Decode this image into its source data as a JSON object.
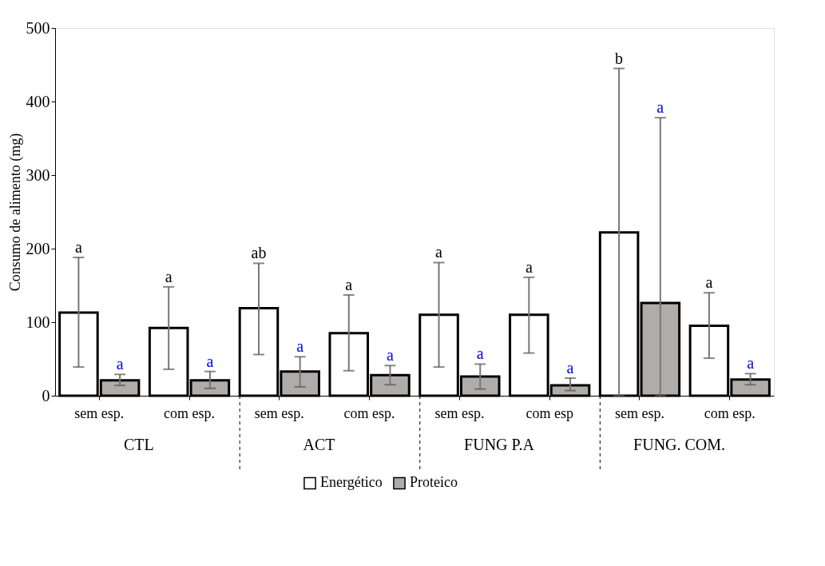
{
  "chart_data": {
    "type": "bar",
    "ylabel": "Consumo  de alimento  (mg)",
    "categories": [
      "sem esp.",
      "com esp.",
      "sem esp.",
      "com esp.",
      "sem esp.",
      "com esp",
      "sem esp.",
      "com esp."
    ],
    "annotations": [
      "CTL",
      "ACT",
      "FUNG P.A",
      "FUNG. COM.",
      "a",
      "a",
      "ab",
      "a",
      "a",
      "a",
      "b",
      "a",
      "a",
      "a",
      "a",
      "a",
      "a",
      "a",
      "a",
      "a"
    ],
    "series": [
      {
        "name": "Energético",
        "color": "#ffffff",
        "values": [
          113,
          92,
          119,
          85,
          110,
          110,
          222,
          95
        ],
        "errors": [
          [
            39,
            188
          ],
          [
            36,
            148
          ],
          [
            56,
            180
          ],
          [
            34,
            137
          ],
          [
            39,
            181
          ],
          [
            58,
            161
          ],
          [
            0,
            445
          ],
          [
            51,
            140
          ]
        ]
      },
      {
        "name": "Proteico",
        "color": "#b0aca9",
        "values": [
          21,
          21,
          33,
          28,
          26,
          14,
          126,
          22
        ],
        "errors": [
          [
            14,
            29
          ],
          [
            10,
            33
          ],
          [
            12,
            53
          ],
          [
            15,
            41
          ],
          [
            9,
            43
          ],
          [
            7,
            24
          ],
          [
            0,
            378
          ],
          [
            15,
            30
          ]
        ]
      }
    ],
    "ylim": [
      0,
      500
    ],
    "yticks": [
      0,
      100,
      200,
      300,
      400,
      500
    ],
    "grid": false,
    "legend": "bottom"
  }
}
